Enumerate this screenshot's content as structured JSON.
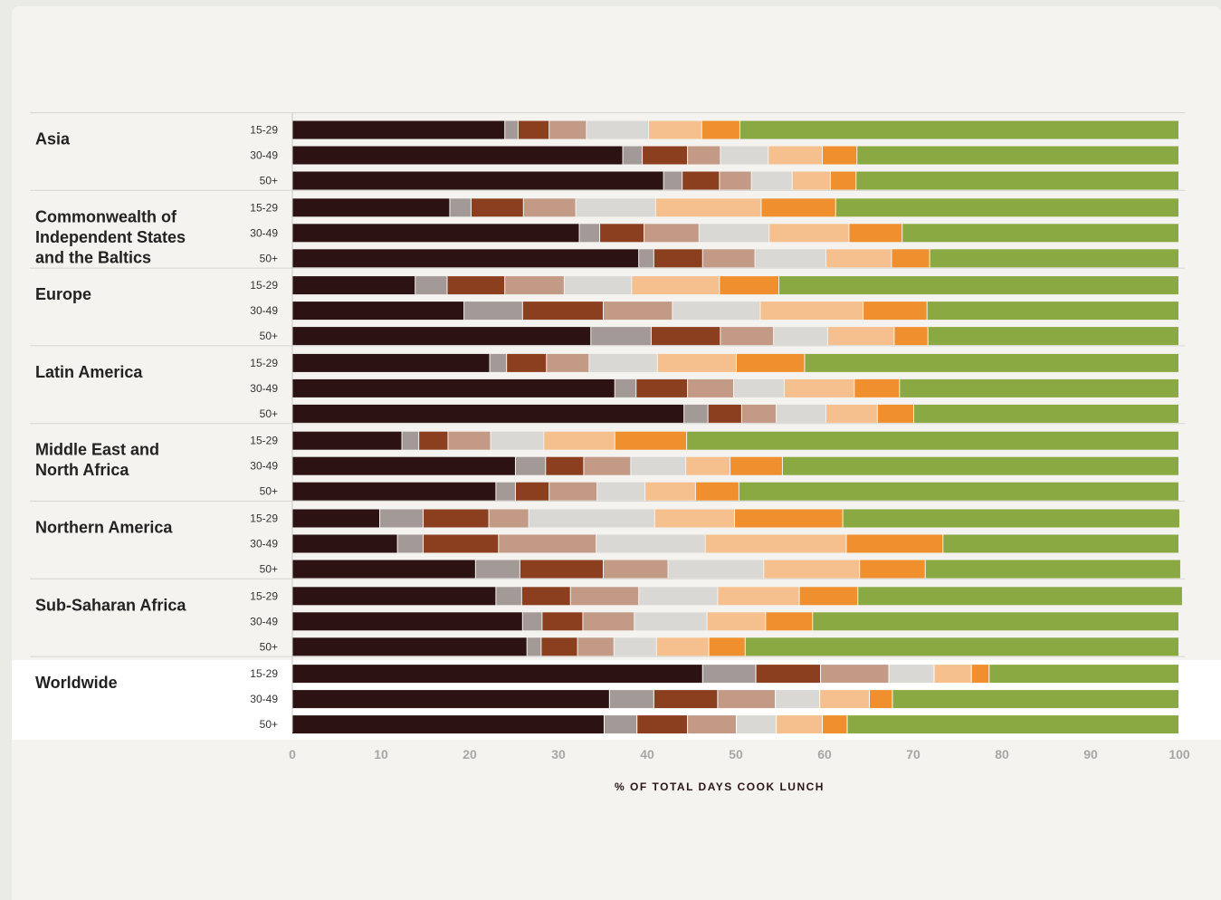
{
  "chart_data": {
    "type": "bar",
    "orientation": "horizontal",
    "stacked": true,
    "xlabel": "% OF TOTAL DAYS COOK LUNCH",
    "xlim": [
      0,
      100
    ],
    "xticks": [
      0,
      10,
      20,
      30,
      40,
      50,
      60,
      70,
      80,
      90,
      100
    ],
    "grid": false,
    "legend": "none",
    "segment_colors": [
      "#2d1213",
      "#a39a98",
      "#8c3f1f",
      "#c39a86",
      "#d9d8d5",
      "#f5c08e",
      "#f08f2e",
      "#8aa942"
    ],
    "highlight_group": "Worldwide",
    "groups": [
      {
        "name": "Asia",
        "rows": [
          {
            "age": "15-29",
            "values": [
              24,
              1.5,
              3.5,
              4.2,
              7,
              6,
              4.3,
              49.5
            ]
          },
          {
            "age": "30-49",
            "values": [
              37.3,
              2.2,
              5.1,
              3.7,
              5.4,
              6.1,
              3.9,
              36.3
            ]
          },
          {
            "age": "50+",
            "values": [
              41.9,
              2.1,
              4.2,
              3.6,
              4.6,
              4.3,
              2.9,
              36.4
            ]
          }
        ]
      },
      {
        "name": "Commonwealth of Independent States and the Baltics",
        "rows": [
          {
            "age": "15-29",
            "values": [
              17.8,
              2.4,
              5.9,
              5.9,
              9,
              11.9,
              8.4,
              38.7
            ]
          },
          {
            "age": "30-49",
            "values": [
              32.4,
              2.3,
              5,
              6.2,
              7.9,
              9,
              6,
              31.2
            ]
          },
          {
            "age": "50+",
            "values": [
              39.1,
              1.7,
              5.5,
              5.9,
              8,
              7.4,
              4.3,
              28.1
            ]
          }
        ]
      },
      {
        "name": "Europe",
        "rows": [
          {
            "age": "15-29",
            "values": [
              13.9,
              3.6,
              6.5,
              6.7,
              7.6,
              9.9,
              6.7,
              45.1
            ]
          },
          {
            "age": "30-49",
            "values": [
              19.4,
              6.6,
              9.1,
              7.8,
              9.9,
              11.6,
              7.2,
              28.4
            ]
          },
          {
            "age": "50+",
            "values": [
              33.7,
              6.8,
              7.8,
              6,
              6.1,
              7.5,
              3.8,
              28.3
            ]
          }
        ]
      },
      {
        "name": "Latin America",
        "rows": [
          {
            "age": "15-29",
            "values": [
              22.3,
              1.9,
              4.5,
              4.8,
              7.7,
              8.9,
              7.7,
              42.2
            ]
          },
          {
            "age": "30-49",
            "values": [
              36.4,
              2.4,
              5.8,
              5.2,
              5.7,
              7.9,
              5.1,
              31.5
            ]
          },
          {
            "age": "50+",
            "values": [
              44.2,
              2.7,
              3.8,
              3.9,
              5.6,
              5.8,
              4.1,
              29.9
            ]
          }
        ]
      },
      {
        "name": "Middle East and North Africa",
        "rows": [
          {
            "age": "15-29",
            "values": [
              12.4,
              1.9,
              3.3,
              4.8,
              6,
              8,
              8.1,
              55.5
            ]
          },
          {
            "age": "30-49",
            "values": [
              25.2,
              3.4,
              4.3,
              5.3,
              6.2,
              5,
              5.9,
              44.7
            ]
          },
          {
            "age": "50+",
            "values": [
              23,
              2.2,
              3.8,
              5.4,
              5.4,
              5.7,
              4.9,
              49.6
            ]
          }
        ]
      },
      {
        "name": "Northern America",
        "rows": [
          {
            "age": "15-29",
            "values": [
              9.9,
              4.9,
              7.4,
              4.5,
              14.2,
              9,
              12.2,
              38
            ]
          },
          {
            "age": "30-49",
            "values": [
              11.9,
              2.9,
              8.5,
              11,
              12.3,
              15.9,
              10.9,
              26.6
            ]
          },
          {
            "age": "50+",
            "values": [
              20.7,
              5,
              9.4,
              7.3,
              10.8,
              10.8,
              7.4,
              28.8
            ]
          }
        ]
      },
      {
        "name": "Sub-Saharan Africa",
        "rows": [
          {
            "age": "15-29",
            "values": [
              23,
              2.9,
              5.5,
              7.7,
              8.9,
              9.2,
              6.6,
              36.6
            ]
          },
          {
            "age": "30-49",
            "values": [
              26,
              2.2,
              4.6,
              5.8,
              8.2,
              6.6,
              5.3,
              41.3
            ]
          },
          {
            "age": "50+",
            "values": [
              26.5,
              1.6,
              4.1,
              4.1,
              4.8,
              5.9,
              4.1,
              48.9
            ]
          }
        ]
      },
      {
        "name": "Worldwide",
        "rows": [
          {
            "age": "15-29",
            "values": [
              46.3,
              6,
              7.3,
              7.7,
              5.1,
              4.2,
              2,
              21.4
            ]
          },
          {
            "age": "30-49",
            "values": [
              35.8,
              5,
              7.2,
              6.5,
              5,
              5.6,
              2.6,
              32.3
            ]
          },
          {
            "age": "50+",
            "values": [
              35.2,
              3.7,
              5.7,
              5.5,
              4.5,
              5.2,
              2.8,
              37.4
            ]
          }
        ]
      }
    ]
  }
}
